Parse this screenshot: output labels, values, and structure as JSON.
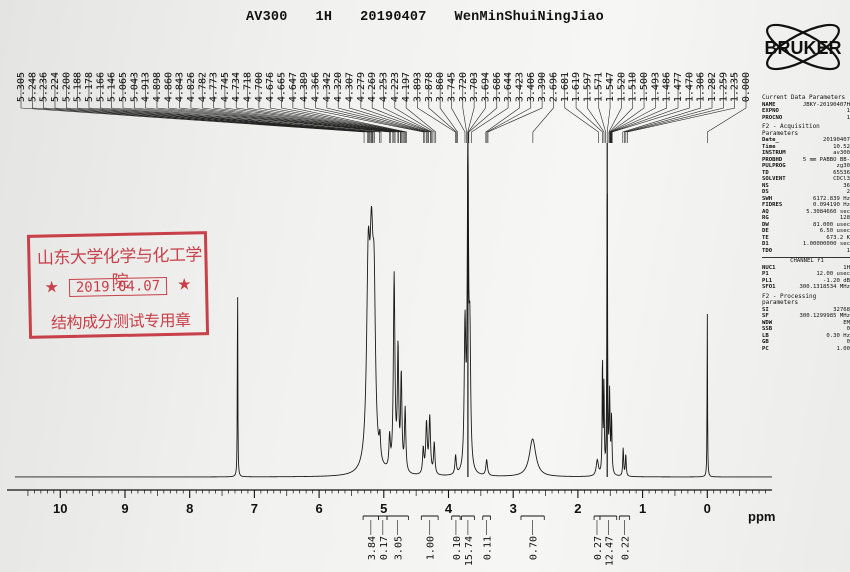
{
  "header": {
    "instrument": "AV300",
    "nucleus": "1H",
    "date_code": "20190407",
    "sample": "WenMinShuiNingJiao"
  },
  "logo": {
    "text": "BRUKER"
  },
  "stamp": {
    "line1": "山东大学化学与化工学院",
    "date": "2019.04.07",
    "line3": "结构成分测试专用章",
    "color": "#c8414a"
  },
  "peak_list": [
    "5.305",
    "5.248",
    "5.236",
    "5.224",
    "5.200",
    "5.188",
    "5.178",
    "5.166",
    "5.146",
    "5.065",
    "5.043",
    "4.913",
    "4.898",
    "4.860",
    "4.843",
    "4.826",
    "4.782",
    "4.773",
    "4.745",
    "4.734",
    "4.718",
    "4.700",
    "4.676",
    "4.665",
    "4.647",
    "4.389",
    "4.366",
    "4.342",
    "4.320",
    "4.307",
    "4.279",
    "4.269",
    "4.253",
    "4.223",
    "4.197",
    "3.893",
    "3.878",
    "3.860",
    "3.745",
    "3.720",
    "3.703",
    "3.694",
    "3.686",
    "3.644",
    "3.423",
    "3.406",
    "3.390",
    "2.696",
    "1.681",
    "1.619",
    "1.597",
    "1.571",
    "1.547",
    "1.520",
    "1.510",
    "1.500",
    "1.493",
    "1.486",
    "1.477",
    "1.470",
    "1.306",
    "1.282",
    "1.259",
    "1.235",
    "0.000"
  ],
  "params": {
    "current": {
      "title": "Current Data Parameters",
      "rows": [
        [
          "NAME",
          "JBKY-20190407H"
        ],
        [
          "EXPNO",
          "1"
        ],
        [
          "PROCNO",
          "1"
        ]
      ]
    },
    "acq": {
      "title": "F2 - Acquisition Parameters",
      "rows": [
        [
          "Date_",
          "20190407"
        ],
        [
          "Time",
          "10.52"
        ],
        [
          "INSTRUM",
          "av300"
        ],
        [
          "PROBHD",
          "5 mm PABBO BB-"
        ],
        [
          "PULPROG",
          "zg30"
        ],
        [
          "TD",
          "65536"
        ],
        [
          "SOLVENT",
          "CDCl3"
        ],
        [
          "NS",
          "36"
        ],
        [
          "DS",
          "2"
        ],
        [
          "SWH",
          "6172.839 Hz"
        ],
        [
          "FIDRES",
          "0.094190 Hz"
        ],
        [
          "AQ",
          "5.3084660 sec"
        ],
        [
          "RG",
          "128"
        ],
        [
          "DW",
          "81.000 usec"
        ],
        [
          "DE",
          "6.50 usec"
        ],
        [
          "TE",
          "673.2 K"
        ],
        [
          "D1",
          "1.00000000 sec"
        ],
        [
          "TD0",
          "1"
        ]
      ]
    },
    "channel": {
      "title": "CHANNEL f1",
      "rows": [
        [
          "NUC1",
          "1H"
        ],
        [
          "P1",
          "12.00 usec"
        ],
        [
          "PL1",
          "-1.20 dB"
        ],
        [
          "SFO1",
          "300.1318534 MHz"
        ]
      ]
    },
    "proc": {
      "title": "F2 - Processing parameters",
      "rows": [
        [
          "SI",
          "32768"
        ],
        [
          "SF",
          "300.1299985 MHz"
        ],
        [
          "WDW",
          "EM"
        ],
        [
          "SSB",
          "0"
        ],
        [
          "LB",
          "0.30 Hz"
        ],
        [
          "GB",
          "0"
        ],
        [
          "PC",
          "1.00"
        ]
      ]
    }
  },
  "chart_data": {
    "type": "line",
    "title": "",
    "xlabel": "ppm",
    "ylabel": "",
    "xlim": [
      10.7,
      -1.0
    ],
    "x_reversed": true,
    "x_ticks": [
      10,
      9,
      8,
      7,
      6,
      5,
      4,
      3,
      2,
      1,
      0
    ],
    "grid": false,
    "peaks": [
      {
        "ppm": 7.26,
        "height": 0.68,
        "width": 0.004
      },
      {
        "ppm": 5.24,
        "height": 0.6,
        "width": 0.03
      },
      {
        "ppm": 5.19,
        "height": 0.57,
        "width": 0.03
      },
      {
        "ppm": 5.15,
        "height": 0.46,
        "width": 0.025
      },
      {
        "ppm": 5.06,
        "height": 0.07,
        "width": 0.012
      },
      {
        "ppm": 4.91,
        "height": 0.1,
        "width": 0.012
      },
      {
        "ppm": 4.84,
        "height": 0.62,
        "width": 0.014
      },
      {
        "ppm": 4.78,
        "height": 0.38,
        "width": 0.012
      },
      {
        "ppm": 4.73,
        "height": 0.3,
        "width": 0.012
      },
      {
        "ppm": 4.67,
        "height": 0.2,
        "width": 0.012
      },
      {
        "ppm": 4.39,
        "height": 0.08,
        "width": 0.012
      },
      {
        "ppm": 4.34,
        "height": 0.16,
        "width": 0.014
      },
      {
        "ppm": 4.29,
        "height": 0.18,
        "width": 0.014
      },
      {
        "ppm": 4.22,
        "height": 0.1,
        "width": 0.012
      },
      {
        "ppm": 3.89,
        "height": 0.06,
        "width": 0.012
      },
      {
        "ppm": 3.745,
        "height": 0.45,
        "width": 0.014
      },
      {
        "ppm": 3.7,
        "height": 1.0,
        "width": 0.012
      },
      {
        "ppm": 3.67,
        "height": 0.4,
        "width": 0.014
      },
      {
        "ppm": 3.41,
        "height": 0.05,
        "width": 0.015
      },
      {
        "ppm": 2.7,
        "height": 0.12,
        "width": 0.06
      },
      {
        "ppm": 1.7,
        "height": 0.05,
        "width": 0.02
      },
      {
        "ppm": 1.62,
        "height": 0.38,
        "width": 0.006
      },
      {
        "ppm": 1.597,
        "height": 0.28,
        "width": 0.006
      },
      {
        "ppm": 1.547,
        "height": 1.0,
        "width": 0.006
      },
      {
        "ppm": 1.51,
        "height": 0.25,
        "width": 0.008
      },
      {
        "ppm": 1.48,
        "height": 0.18,
        "width": 0.008
      },
      {
        "ppm": 1.3,
        "height": 0.09,
        "width": 0.008
      },
      {
        "ppm": 1.26,
        "height": 0.07,
        "width": 0.008
      },
      {
        "ppm": 0.0,
        "height": 0.53,
        "width": 0.004
      }
    ],
    "integrals": [
      {
        "label": "3.84",
        "from": 5.32,
        "to": 5.08
      },
      {
        "label": "0.17",
        "from": 5.08,
        "to": 4.95
      },
      {
        "label": "3.05",
        "from": 4.95,
        "to": 4.62
      },
      {
        "label": "1.00",
        "from": 4.42,
        "to": 4.16
      },
      {
        "label": "0.10",
        "from": 3.95,
        "to": 3.82
      },
      {
        "label": "15.74",
        "from": 3.8,
        "to": 3.6
      },
      {
        "label": "0.11",
        "from": 3.47,
        "to": 3.35
      },
      {
        "label": "0.70",
        "from": 2.88,
        "to": 2.52
      },
      {
        "label": "0.27",
        "from": 1.75,
        "to": 1.66
      },
      {
        "label": "12.47",
        "from": 1.66,
        "to": 1.4
      },
      {
        "label": "0.22",
        "from": 1.36,
        "to": 1.2
      }
    ]
  }
}
